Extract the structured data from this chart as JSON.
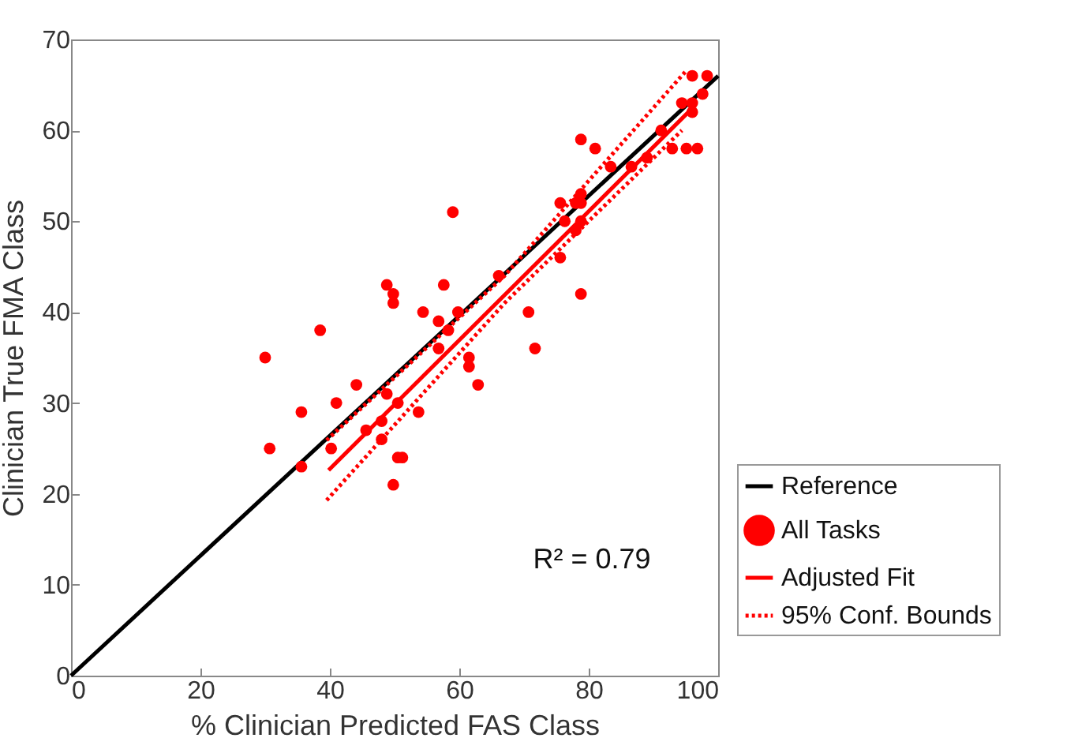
{
  "chart_data": {
    "type": "scatter",
    "xlabel": "% Clinician Predicted FAS Class",
    "ylabel": "Clinician True FMA Class",
    "xlim": [
      0,
      100
    ],
    "ylim": [
      0,
      70
    ],
    "xticks": [
      0,
      20,
      40,
      60,
      80,
      100
    ],
    "yticks": [
      0,
      10,
      20,
      30,
      40,
      50,
      60,
      70
    ],
    "grid": false,
    "legend": "bottom right",
    "annotations": [
      "R² = 0.79"
    ],
    "series": [
      {
        "name": "Reference",
        "type": "line",
        "color": "#000000",
        "line_style": "solid",
        "x": [
          0,
          100
        ],
        "values": [
          0,
          66
        ]
      },
      {
        "name": "All Tasks",
        "marker": "circle",
        "color": "#ff0000",
        "x": [
          30,
          30.7,
          35.6,
          35.6,
          38.5,
          40.2,
          41,
          44.1,
          45.6,
          48,
          48,
          48.8,
          48.8,
          49.8,
          49.8,
          49.8,
          50.5,
          50.5,
          51.2,
          53.7,
          54.4,
          56.8,
          56.8,
          57.6,
          58.3,
          59,
          59.8,
          61.5,
          61.5,
          62.9,
          66.1,
          70.7,
          71.7,
          75.6,
          75.6,
          76.3,
          78,
          78,
          78.8,
          78.8,
          78.8,
          78.8,
          78.8,
          81,
          83.4,
          86.6,
          89,
          91.2,
          92.9,
          94.4,
          95.1,
          96,
          96,
          96,
          96.8,
          97.6,
          98.3
        ],
        "values": [
          35,
          25,
          29,
          23,
          38,
          25,
          30,
          32,
          27,
          28,
          26,
          43,
          31,
          42,
          41,
          21,
          30,
          24,
          24,
          29,
          40,
          39,
          36,
          43,
          38,
          51,
          40,
          35,
          34,
          32,
          44,
          40,
          36,
          52,
          46,
          50,
          52,
          49,
          59,
          53,
          52,
          50,
          42,
          58,
          56,
          56,
          57,
          60,
          58,
          63,
          58,
          66,
          63,
          62,
          58,
          64,
          66
        ]
      },
      {
        "name": "Adjusted Fit",
        "type": "line",
        "color": "#ff0000",
        "line_style": "solid",
        "x": [
          39.8,
          96.1
        ],
        "values": [
          22.6,
          62.5
        ]
      },
      {
        "name": "95% Conf. Bounds",
        "type": "line",
        "color": "#ff0000",
        "line_style": "dotted",
        "x": [
          39.5,
          67,
          95
        ],
        "values": [
          25.9,
          44,
          66.5
        ]
      },
      {
        "type": "line",
        "color": "#ff0000",
        "line_style": "dotted",
        "x": [
          39.5,
          67,
          94.4
        ],
        "values": [
          19.3,
          41,
          60
        ]
      }
    ]
  }
}
